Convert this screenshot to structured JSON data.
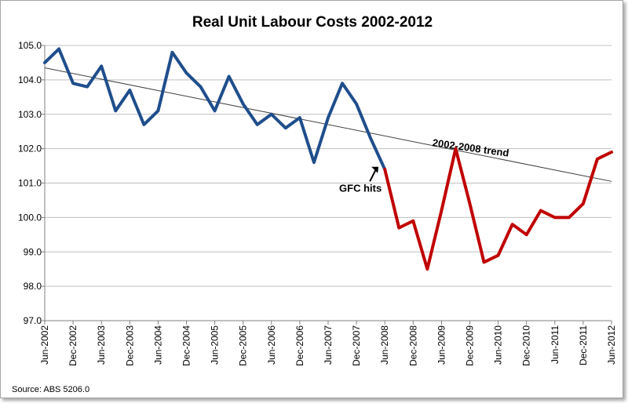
{
  "chart_data": {
    "type": "line",
    "title": "Real Unit Labour Costs 2002-2012",
    "source": "Source: ABS 5206.0",
    "ylim": [
      97.0,
      105.0
    ],
    "yticks": [
      "97.0",
      "98.0",
      "99.0",
      "100.0",
      "101.0",
      "102.0",
      "103.0",
      "104.0",
      "105.0"
    ],
    "xlabels": [
      "Jun-2002",
      "Dec-2002",
      "Jun-2003",
      "Dec-2003",
      "Jun-2004",
      "Dec-2004",
      "Jun-2005",
      "Dec-2005",
      "Jun-2006",
      "Dec-2006",
      "Jun-2007",
      "Dec-2007",
      "Jun-2008",
      "Dec-2008",
      "Jun-2009",
      "Dec-2009",
      "Jun-2010",
      "Dec-2010",
      "Jun-2011",
      "Dec-2011",
      "Jun-2012"
    ],
    "x": [
      "Jun-2002",
      "Sep-2002",
      "Dec-2002",
      "Mar-2003",
      "Jun-2003",
      "Sep-2003",
      "Dec-2003",
      "Mar-2004",
      "Jun-2004",
      "Sep-2004",
      "Dec-2004",
      "Mar-2005",
      "Jun-2005",
      "Sep-2005",
      "Dec-2005",
      "Mar-2006",
      "Jun-2006",
      "Sep-2006",
      "Dec-2006",
      "Mar-2007",
      "Jun-2007",
      "Sep-2007",
      "Dec-2007",
      "Mar-2008",
      "Jun-2008",
      "Sep-2008",
      "Dec-2008",
      "Mar-2009",
      "Jun-2009",
      "Sep-2009",
      "Dec-2009",
      "Mar-2010",
      "Jun-2010",
      "Sep-2010",
      "Dec-2010",
      "Mar-2011",
      "Jun-2011",
      "Sep-2011",
      "Dec-2011",
      "Mar-2012",
      "Jun-2012"
    ],
    "series": [
      {
        "color": "#1f4e8c",
        "values": [
          104.5,
          104.9,
          103.9,
          103.8,
          104.4,
          103.1,
          103.7,
          102.7,
          103.1,
          104.8,
          104.2,
          103.8,
          103.1,
          104.1,
          103.3,
          102.7,
          103.0,
          102.6,
          102.9,
          101.6,
          102.9,
          103.9,
          103.3,
          102.3,
          101.4,
          null,
          null,
          null,
          null,
          null,
          null,
          null,
          null,
          null,
          null,
          null,
          null,
          null,
          null,
          null,
          null
        ]
      },
      {
        "color": "#c00000",
        "values": [
          null,
          null,
          null,
          null,
          null,
          null,
          null,
          null,
          null,
          null,
          null,
          null,
          null,
          null,
          null,
          null,
          null,
          null,
          null,
          null,
          null,
          null,
          null,
          null,
          101.4,
          99.7,
          99.9,
          98.5,
          100.2,
          102.0,
          100.4,
          98.7,
          98.9,
          99.8,
          99.5,
          100.2,
          100.0,
          100.0,
          100.4,
          101.7,
          101.9
        ]
      }
    ],
    "trend": {
      "label": "2002-2008 trend",
      "color": "#404040",
      "start": 104.35,
      "end": 101.05
    },
    "annotations": [
      {
        "text": "GFC hits"
      }
    ],
    "grid": "horizontal",
    "legend": "none"
  }
}
